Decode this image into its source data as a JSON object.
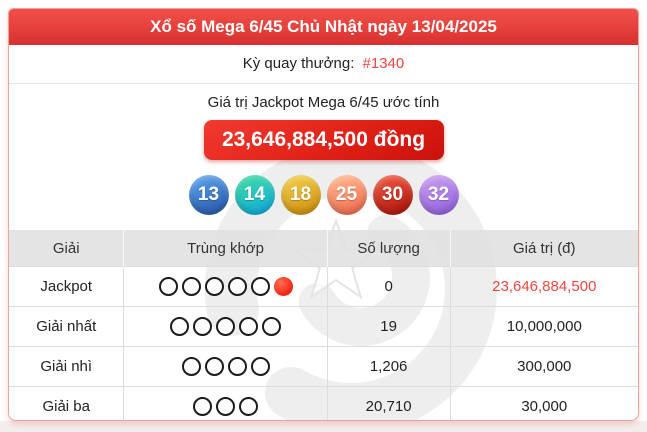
{
  "page": {
    "title_banner": "Xổ số Mega 6/45 Chủ Nhật ngày 13/04/2025",
    "draw": {
      "label": "Kỳ quay thưởng:",
      "id": "#1340"
    },
    "jackpot": {
      "estimate_label": "Giá trị Jackpot Mega 6/45 ước tính",
      "value": "23,646,884,500 đồng"
    }
  },
  "winning_numbers": [
    {
      "number": "13",
      "color_top": "#58a0e8",
      "color_bottom": "#2b5cb0"
    },
    {
      "number": "14",
      "color_top": "#3bd9a4",
      "color_bottom": "#13aede"
    },
    {
      "number": "18",
      "color_top": "#f0cc48",
      "color_bottom": "#d29310"
    },
    {
      "number": "25",
      "color_top": "#ffb68c",
      "color_bottom": "#f26e50"
    },
    {
      "number": "30",
      "color_top": "#ee5540",
      "color_bottom": "#b2170c"
    },
    {
      "number": "32",
      "color_top": "#c79aee",
      "color_bottom": "#9565e2"
    }
  ],
  "prize_table": {
    "headers": [
      "Giải",
      "Trùng khớp",
      "Số lượng",
      "Giá trị (đ)"
    ],
    "rows": [
      {
        "prize": "Jackpot",
        "white_balls": 5,
        "red_balls": 1,
        "count": "0",
        "value": "23,646,884,500",
        "value_highlight": true
      },
      {
        "prize": "Giải nhất",
        "white_balls": 5,
        "red_balls": 0,
        "count": "19",
        "value": "10,000,000",
        "value_highlight": false
      },
      {
        "prize": "Giải nhì",
        "white_balls": 4,
        "red_balls": 0,
        "count": "1,206",
        "value": "300,000",
        "value_highlight": false
      },
      {
        "prize": "Giải ba",
        "white_balls": 3,
        "red_balls": 0,
        "count": "20,710",
        "value": "30,000",
        "value_highlight": false
      }
    ]
  },
  "colors": {
    "banner_red": "#e6403b",
    "button_red": "#df1f15",
    "accent_red": "#f4453e",
    "card_border": "#eba49d"
  }
}
